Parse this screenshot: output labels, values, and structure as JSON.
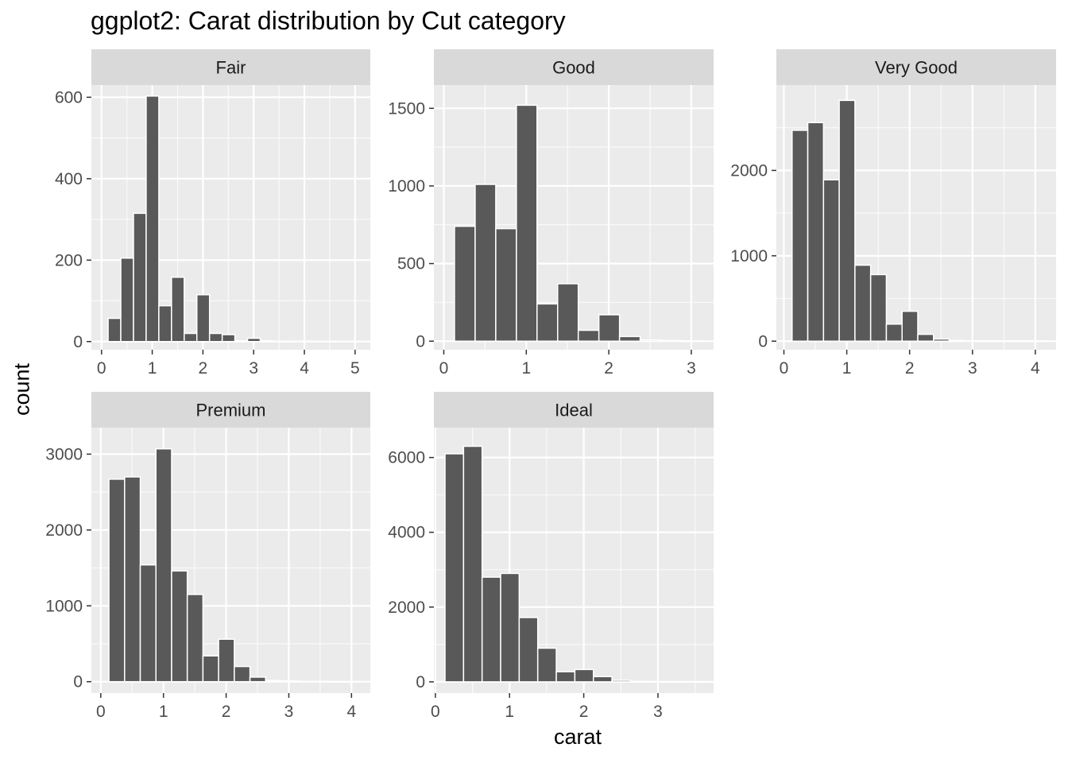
{
  "chart_data": {
    "type": "bar",
    "title": "ggplot2: Carat distribution by Cut category",
    "xlabel": "carat",
    "ylabel": "count",
    "grid": true,
    "colors": {
      "bar_fill": "#595959",
      "bar_stroke": "#ffffff",
      "panel_bg": "#ebebeb",
      "strip_bg": "#d9d9d9",
      "tick_text": "#4d4d4d"
    },
    "facets": [
      {
        "name": "Fair",
        "xlim": [
          -0.2,
          5.3
        ],
        "ylim": [
          -20,
          630
        ],
        "xticks": [
          0,
          1,
          2,
          3,
          4,
          5
        ],
        "yticks": [
          0,
          200,
          400,
          600
        ],
        "bin_width": 0.25,
        "bins": [
          {
            "x0": 0.13,
            "count": 57
          },
          {
            "x0": 0.38,
            "count": 205
          },
          {
            "x0": 0.63,
            "count": 315
          },
          {
            "x0": 0.88,
            "count": 603
          },
          {
            "x0": 1.13,
            "count": 88
          },
          {
            "x0": 1.38,
            "count": 158
          },
          {
            "x0": 1.63,
            "count": 20
          },
          {
            "x0": 1.88,
            "count": 115
          },
          {
            "x0": 2.13,
            "count": 20
          },
          {
            "x0": 2.38,
            "count": 17
          },
          {
            "x0": 2.63,
            "count": 2
          },
          {
            "x0": 2.88,
            "count": 8
          },
          {
            "x0": 3.13,
            "count": 2
          },
          {
            "x0": 3.38,
            "count": 1
          },
          {
            "x0": 3.63,
            "count": 1
          },
          {
            "x0": 3.88,
            "count": 1
          },
          {
            "x0": 4.13,
            "count": 0
          },
          {
            "x0": 4.38,
            "count": 0
          },
          {
            "x0": 4.63,
            "count": 0
          },
          {
            "x0": 4.88,
            "count": 1
          }
        ]
      },
      {
        "name": "Good",
        "xlim": [
          -0.12,
          3.27
        ],
        "ylim": [
          -55,
          1650
        ],
        "xticks": [
          0,
          1,
          2,
          3
        ],
        "yticks": [
          0,
          500,
          1000,
          1500
        ],
        "bin_width": 0.25,
        "bins": [
          {
            "x0": 0.13,
            "count": 740
          },
          {
            "x0": 0.38,
            "count": 1010
          },
          {
            "x0": 0.63,
            "count": 725
          },
          {
            "x0": 0.88,
            "count": 1520
          },
          {
            "x0": 1.13,
            "count": 240
          },
          {
            "x0": 1.38,
            "count": 370
          },
          {
            "x0": 1.63,
            "count": 70
          },
          {
            "x0": 1.88,
            "count": 170
          },
          {
            "x0": 2.13,
            "count": 30
          },
          {
            "x0": 2.38,
            "count": 8
          },
          {
            "x0": 2.63,
            "count": 4
          },
          {
            "x0": 2.88,
            "count": 2
          }
        ]
      },
      {
        "name": "Very Good",
        "xlim": [
          -0.12,
          4.33
        ],
        "ylim": [
          -100,
          3000
        ],
        "xticks": [
          0,
          1,
          2,
          3,
          4
        ],
        "yticks": [
          0,
          1000,
          2000
        ],
        "bin_width": 0.25,
        "bins": [
          {
            "x0": 0.13,
            "count": 2470
          },
          {
            "x0": 0.38,
            "count": 2560
          },
          {
            "x0": 0.63,
            "count": 1890
          },
          {
            "x0": 0.88,
            "count": 2820
          },
          {
            "x0": 1.13,
            "count": 890
          },
          {
            "x0": 1.38,
            "count": 780
          },
          {
            "x0": 1.63,
            "count": 200
          },
          {
            "x0": 1.88,
            "count": 350
          },
          {
            "x0": 2.13,
            "count": 80
          },
          {
            "x0": 2.38,
            "count": 25
          },
          {
            "x0": 2.63,
            "count": 8
          },
          {
            "x0": 2.88,
            "count": 4
          },
          {
            "x0": 3.13,
            "count": 2
          },
          {
            "x0": 3.38,
            "count": 1
          },
          {
            "x0": 3.63,
            "count": 1
          },
          {
            "x0": 3.88,
            "count": 1
          }
        ]
      },
      {
        "name": "Premium",
        "xlim": [
          -0.15,
          4.3
        ],
        "ylim": [
          -150,
          3350
        ],
        "xticks": [
          0,
          1,
          2,
          3,
          4
        ],
        "yticks": [
          0,
          1000,
          2000,
          3000
        ],
        "bin_width": 0.25,
        "bins": [
          {
            "x0": 0.13,
            "count": 2670
          },
          {
            "x0": 0.38,
            "count": 2700
          },
          {
            "x0": 0.63,
            "count": 1540
          },
          {
            "x0": 0.88,
            "count": 3070
          },
          {
            "x0": 1.13,
            "count": 1460
          },
          {
            "x0": 1.38,
            "count": 1150
          },
          {
            "x0": 1.63,
            "count": 340
          },
          {
            "x0": 1.88,
            "count": 560
          },
          {
            "x0": 2.13,
            "count": 200
          },
          {
            "x0": 2.38,
            "count": 60
          },
          {
            "x0": 2.63,
            "count": 15
          },
          {
            "x0": 2.88,
            "count": 10
          },
          {
            "x0": 3.13,
            "count": 4
          },
          {
            "x0": 3.38,
            "count": 2
          },
          {
            "x0": 3.63,
            "count": 1
          },
          {
            "x0": 3.88,
            "count": 1
          }
        ]
      },
      {
        "name": "Ideal",
        "xlim": [
          -0.02,
          3.75
        ],
        "ylim": [
          -300,
          6800
        ],
        "xticks": [
          0,
          1,
          2,
          3
        ],
        "yticks": [
          0,
          2000,
          4000,
          6000
        ],
        "bin_width": 0.25,
        "bins": [
          {
            "x0": 0.13,
            "count": 6100
          },
          {
            "x0": 0.38,
            "count": 6300
          },
          {
            "x0": 0.63,
            "count": 2800
          },
          {
            "x0": 0.88,
            "count": 2900
          },
          {
            "x0": 1.13,
            "count": 1720
          },
          {
            "x0": 1.38,
            "count": 900
          },
          {
            "x0": 1.63,
            "count": 270
          },
          {
            "x0": 1.88,
            "count": 330
          },
          {
            "x0": 2.13,
            "count": 140
          },
          {
            "x0": 2.38,
            "count": 40
          },
          {
            "x0": 2.63,
            "count": 15
          },
          {
            "x0": 2.88,
            "count": 6
          },
          {
            "x0": 3.13,
            "count": 3
          },
          {
            "x0": 3.38,
            "count": 1
          }
        ]
      }
    ]
  }
}
